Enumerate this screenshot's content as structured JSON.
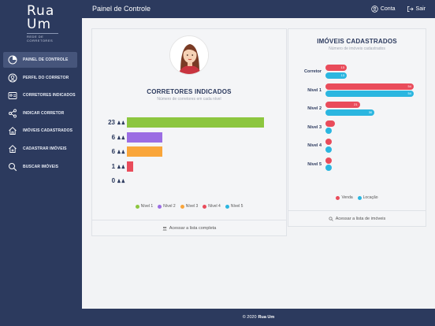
{
  "brand": {
    "line1": "Rua",
    "line2": "Um",
    "tagline": "REDE DE CORRETORES"
  },
  "sidebar": {
    "items": [
      {
        "label": "PAINEL DE CONTROLE",
        "icon": "dashboard-icon",
        "active": true
      },
      {
        "label": "PERFIL DO CORRETOR",
        "icon": "profile-icon",
        "active": false
      },
      {
        "label": "CORRETORES INDICADOS",
        "icon": "referral-icon",
        "active": false
      },
      {
        "label": "INDICAR CORRETOR",
        "icon": "share-icon",
        "active": false
      },
      {
        "label": "IMÓVEIS CADASTRADOS",
        "icon": "home-icon",
        "active": false
      },
      {
        "label": "CADASTRAR IMÓVEIS",
        "icon": "home-add-icon",
        "active": false
      },
      {
        "label": "BUSCAR IMÓVEIS",
        "icon": "search-icon",
        "active": false
      }
    ]
  },
  "header": {
    "title": "Painel de Controle",
    "account_label": "Conta",
    "logout_label": "Sair"
  },
  "left_card": {
    "title": "CORRETORES INDICADOS",
    "subtitle": "Número de corretores em cada nível",
    "footer_link": "Acessar a lista completa"
  },
  "right_card": {
    "title": "IMÓVEIS CADASTRADOS",
    "subtitle": "Número de imóveis cadastrados",
    "footer_link": "Acessar a lista de imóveis"
  },
  "chart_data": [
    {
      "type": "bar",
      "orientation": "horizontal",
      "categories": [
        "Nível 1",
        "Nível 2",
        "Nível 3",
        "Nível 4",
        "Nível 5"
      ],
      "values": [
        23,
        6,
        6,
        1,
        0
      ],
      "value_labels": [
        "23",
        "6",
        "6",
        "1",
        "0"
      ],
      "colors": [
        "#8cc63f",
        "#9b6de3",
        "#f9a53a",
        "#e94c5b",
        "#2bb6e0"
      ],
      "max": 23,
      "legend_position": "bottom",
      "legend": [
        "Nível 1",
        "Nível 2",
        "Nível 3",
        "Nível 4",
        "Nível 5"
      ]
    },
    {
      "type": "bar",
      "orientation": "horizontal",
      "categories": [
        "Corretor",
        "Nível 1",
        "Nível 2",
        "Nível 3",
        "Nível 4",
        "Nível 5"
      ],
      "series": [
        {
          "name": "Venda",
          "color": "#e94c5b",
          "values": [
            13,
            54,
            21,
            1,
            0,
            0
          ]
        },
        {
          "name": "Locação",
          "color": "#2bb6e0",
          "values": [
            13,
            54,
            30,
            0,
            0,
            0
          ]
        }
      ],
      "value_labels": {
        "Venda": [
          "13",
          "54",
          "21",
          "",
          "",
          ""
        ],
        "Locação": [
          "13",
          "54",
          "30",
          "",
          "",
          ""
        ]
      },
      "max": 54,
      "legend_position": "bottom",
      "legend": [
        "Venda",
        "Locação"
      ]
    }
  ],
  "footer": {
    "copyright": "© 2020",
    "brand": "Rua Um"
  }
}
